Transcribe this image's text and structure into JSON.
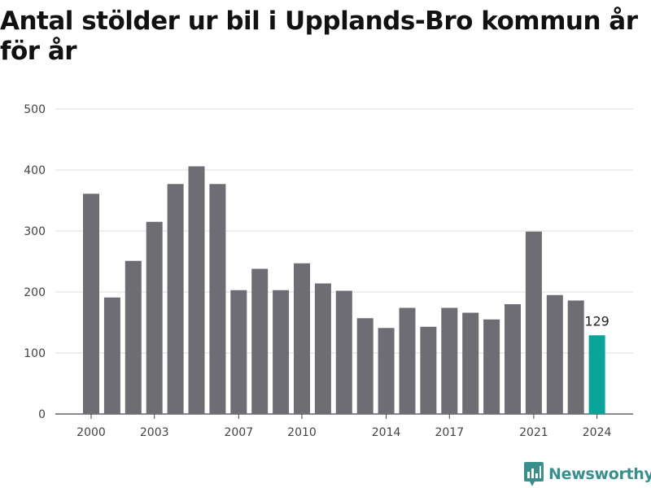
{
  "chart_data": {
    "type": "bar",
    "title": "Antal stölder ur bil i Upplands-Bro kommun år för år",
    "xlabel": "",
    "ylabel": "",
    "ylim": [
      0,
      500
    ],
    "yticks": [
      0,
      100,
      200,
      300,
      400,
      500
    ],
    "xticks": [
      "2000",
      "2003",
      "2007",
      "2010",
      "2014",
      "2017",
      "2021",
      "2024"
    ],
    "grid": true,
    "categories": [
      "2000",
      "2001",
      "2002",
      "2003",
      "2004",
      "2005",
      "2006",
      "2007",
      "2008",
      "2009",
      "2010",
      "2011",
      "2012",
      "2013",
      "2014",
      "2015",
      "2016",
      "2017",
      "2018",
      "2019",
      "2020",
      "2021",
      "2022",
      "2023",
      "2024"
    ],
    "values": [
      361,
      191,
      251,
      315,
      377,
      406,
      377,
      203,
      238,
      203,
      247,
      214,
      202,
      157,
      141,
      174,
      143,
      174,
      166,
      155,
      180,
      299,
      195,
      186,
      129
    ],
    "highlight": {
      "category": "2024",
      "label": "129"
    },
    "colors": {
      "bar": "#6d6d73",
      "highlight": "#0aa39a",
      "grid": "#dedede",
      "axis": "#555555"
    }
  },
  "branding": {
    "logo_text": "Newsworthy",
    "logo_icon": "newsworthy-chart-bubble-icon"
  }
}
